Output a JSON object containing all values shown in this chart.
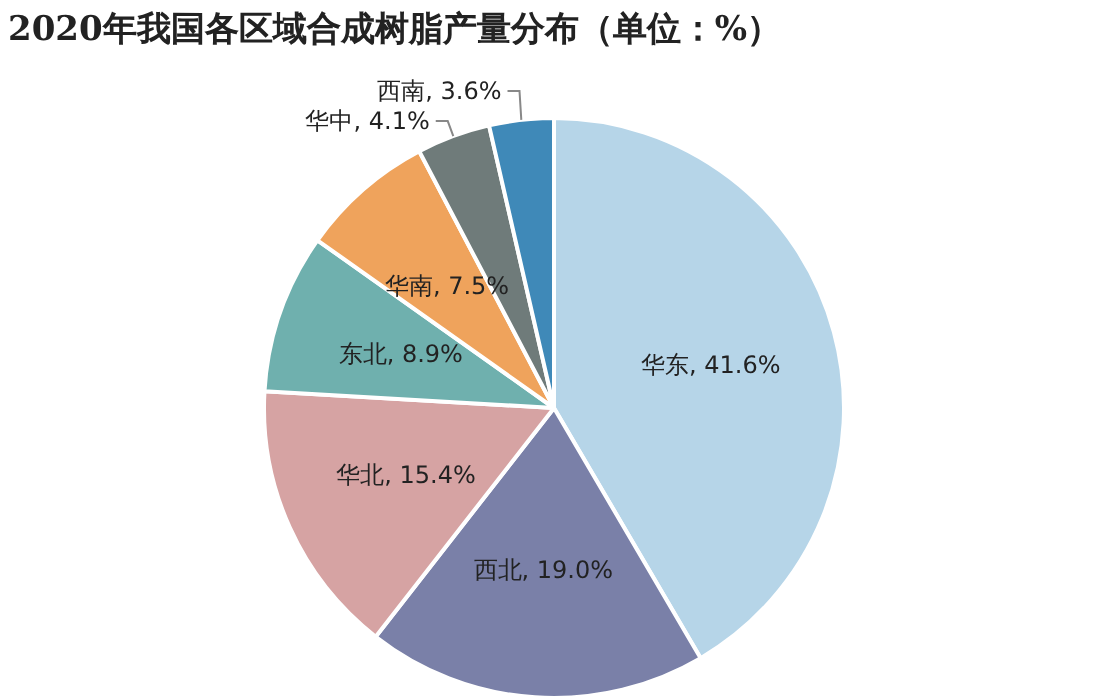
{
  "chart_data": {
    "type": "pie",
    "title": "2020年我国各区域合成树脂产量分布（单位：%）",
    "categories": [
      "华东",
      "西北",
      "华北",
      "东北",
      "华南",
      "华中",
      "西南"
    ],
    "values": [
      41.6,
      19.0,
      15.4,
      8.9,
      7.5,
      4.1,
      3.6
    ],
    "colors": [
      "#b6d5e8",
      "#7a80a8",
      "#d6a3a3",
      "#6fb0ae",
      "#efa35c",
      "#6f7b7a",
      "#3f89b8"
    ],
    "value_labels": [
      ", 41.6%",
      ", 19.0%",
      ", 15.4%",
      ", 8.9%",
      ", 7.5%",
      ", 4.1%",
      ", 3.6%"
    ]
  }
}
